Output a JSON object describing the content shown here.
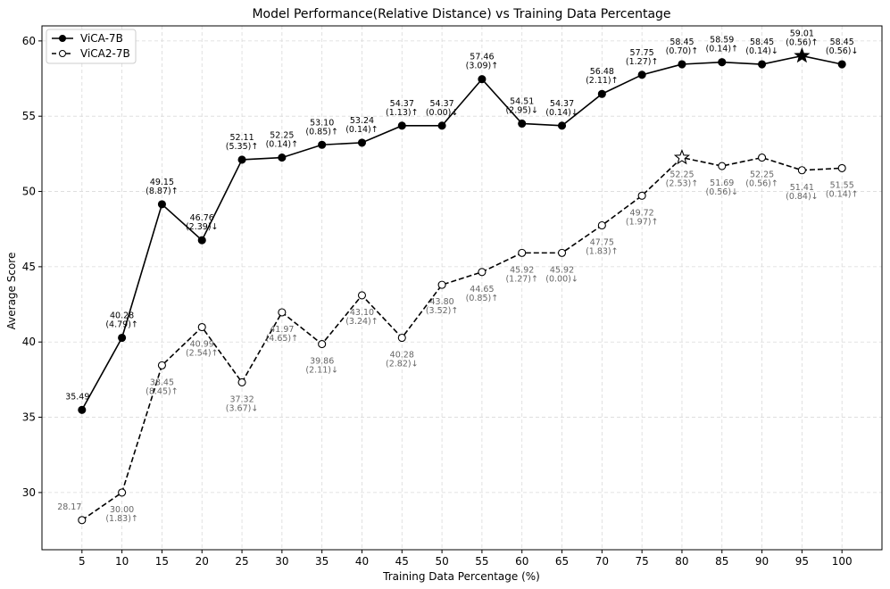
{
  "chart_data": {
    "type": "line",
    "title": "Model Performance(Relative Distance) vs Training Data Percentage",
    "xlabel": "Training Data Percentage (%)",
    "ylabel": "Average Score",
    "x": [
      5,
      10,
      15,
      20,
      25,
      30,
      35,
      40,
      45,
      50,
      55,
      60,
      65,
      70,
      75,
      80,
      85,
      90,
      95,
      100
    ],
    "xlim": [
      0,
      105
    ],
    "ylim": [
      26.2,
      61.0
    ],
    "yticks": [
      30,
      35,
      40,
      45,
      50,
      55,
      60
    ],
    "grid": true,
    "legend_position": "top-left",
    "series": [
      {
        "name": "ViCA-7B",
        "line_style": "solid",
        "marker": "filled-circle",
        "color": "#000000",
        "best_index": 18,
        "values": [
          35.49,
          40.28,
          49.15,
          46.76,
          52.11,
          52.25,
          53.1,
          53.24,
          54.37,
          54.37,
          57.46,
          54.51,
          54.37,
          56.48,
          57.75,
          58.45,
          58.59,
          58.45,
          59.01,
          58.45
        ],
        "value_labels": [
          "35.49",
          "40.28",
          "49.15",
          "46.76",
          "52.11",
          "52.25",
          "53.10",
          "53.24",
          "54.37",
          "54.37",
          "57.46",
          "54.51",
          "54.37",
          "56.48",
          "57.75",
          "58.45",
          "58.59",
          "58.45",
          "59.01",
          "58.45"
        ],
        "change_labels": [
          "",
          "(4.79)↑",
          "(8.87)↑",
          "(2.39)↓",
          "(5.35)↑",
          "(0.14)↑",
          "(0.85)↑",
          "(0.14)↑",
          "(1.13)↑",
          "(0.00)↓",
          "(3.09)↑",
          "(2.95)↓",
          "(0.14)↓",
          "(2.11)↑",
          "(1.27)↑",
          "(0.70)↑",
          "(0.14)↑",
          "(0.14)↓",
          "(0.56)↑",
          "(0.56)↓"
        ]
      },
      {
        "name": "ViCA2-7B",
        "line_style": "dashed",
        "marker": "open-circle",
        "color": "#000000",
        "best_index": 15,
        "values": [
          28.17,
          30.0,
          38.45,
          40.99,
          37.32,
          41.97,
          39.86,
          43.1,
          40.28,
          43.8,
          44.65,
          45.92,
          45.92,
          47.75,
          49.72,
          52.25,
          51.69,
          52.25,
          51.41,
          51.55
        ],
        "value_labels": [
          "28.17",
          "30.00",
          "38.45",
          "40.99",
          "37.32",
          "41.97",
          "39.86",
          "43.10",
          "40.28",
          "43.80",
          "44.65",
          "45.92",
          "45.92",
          "47.75",
          "49.72",
          "52.25",
          "51.69",
          "52.25",
          "51.41",
          "51.55"
        ],
        "change_labels": [
          "",
          "(1.83)↑",
          "(8.45)↑",
          "(2.54)↑",
          "(3.67)↓",
          "(4.65)↑",
          "(2.11)↓",
          "(3.24)↑",
          "(2.82)↓",
          "(3.52)↑",
          "(0.85)↑",
          "(1.27)↑",
          "(0.00)↓",
          "(1.83)↑",
          "(1.97)↑",
          "(2.53)↑",
          "(0.56)↓",
          "(0.56)↑",
          "(0.84)↓",
          "(0.14)↑"
        ]
      }
    ],
    "colors": {
      "primary_labels": "#000000",
      "secondary_labels": "#666666",
      "grid": "#d9d9d9"
    }
  }
}
